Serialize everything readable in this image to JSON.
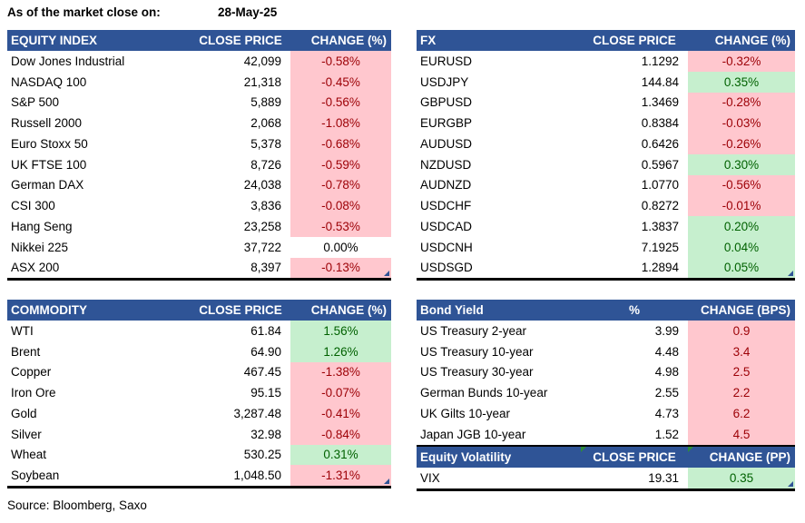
{
  "meta": {
    "as_of_label": "As of the market close on:",
    "date": "28-May-25",
    "source": "Source: Bloomberg, Saxo"
  },
  "colors": {
    "header_bg": "#2F5496",
    "header_text": "#FFFFFF",
    "negative_bg": "#FFC7CE",
    "negative_text": "#9C0006",
    "positive_bg": "#C6EFCE",
    "positive_text": "#006100",
    "flag_green": "#2E8B3A",
    "fill_handle_blue": "#2F5496"
  },
  "tables": {
    "equity": {
      "columns": [
        "EQUITY INDEX",
        "CLOSE PRICE",
        "CHANGE (%)"
      ],
      "rows": [
        {
          "name": "Dow Jones Industrial",
          "price": "42,099",
          "change": "-0.58%",
          "dir": "neg"
        },
        {
          "name": "NASDAQ 100",
          "price": "21,318",
          "change": "-0.45%",
          "dir": "neg"
        },
        {
          "name": "S&P 500",
          "price": "5,889",
          "change": "-0.56%",
          "dir": "neg"
        },
        {
          "name": "Russell 2000",
          "price": "2,068",
          "change": "-1.08%",
          "dir": "neg"
        },
        {
          "name": "Euro Stoxx 50",
          "price": "5,378",
          "change": "-0.68%",
          "dir": "neg"
        },
        {
          "name": "UK FTSE 100",
          "price": "8,726",
          "change": "-0.59%",
          "dir": "neg"
        },
        {
          "name": "German DAX",
          "price": "24,038",
          "change": "-0.78%",
          "dir": "neg"
        },
        {
          "name": "CSI 300",
          "price": "3,836",
          "change": "-0.08%",
          "dir": "neg"
        },
        {
          "name": "Hang Seng",
          "price": "23,258",
          "change": "-0.53%",
          "dir": "neg"
        },
        {
          "name": "Nikkei 225",
          "price": "37,722",
          "change": "0.00%",
          "dir": "flat"
        },
        {
          "name": "ASX 200",
          "price": "8,397",
          "change": "-0.13%",
          "dir": "neg"
        }
      ]
    },
    "fx": {
      "columns": [
        "FX",
        "CLOSE PRICE",
        "CHANGE (%)"
      ],
      "rows": [
        {
          "name": "EURUSD",
          "price": "1.1292",
          "change": "-0.32%",
          "dir": "neg"
        },
        {
          "name": "USDJPY",
          "price": "144.84",
          "change": "0.35%",
          "dir": "pos"
        },
        {
          "name": "GBPUSD",
          "price": "1.3469",
          "change": "-0.28%",
          "dir": "neg"
        },
        {
          "name": "EURGBP",
          "price": "0.8384",
          "change": "-0.03%",
          "dir": "neg"
        },
        {
          "name": "AUDUSD",
          "price": "0.6426",
          "change": "-0.26%",
          "dir": "neg"
        },
        {
          "name": "NZDUSD",
          "price": "0.5967",
          "change": "0.30%",
          "dir": "pos"
        },
        {
          "name": "AUDNZD",
          "price": "1.0770",
          "change": "-0.56%",
          "dir": "neg"
        },
        {
          "name": "USDCHF",
          "price": "0.8272",
          "change": "-0.01%",
          "dir": "neg"
        },
        {
          "name": "USDCAD",
          "price": "1.3837",
          "change": "0.20%",
          "dir": "pos"
        },
        {
          "name": "USDCNH",
          "price": "7.1925",
          "change": "0.04%",
          "dir": "pos"
        },
        {
          "name": "USDSGD",
          "price": "1.2894",
          "change": "0.05%",
          "dir": "pos"
        }
      ]
    },
    "commodity": {
      "columns": [
        "COMMODITY",
        "CLOSE PRICE",
        "CHANGE (%)"
      ],
      "rows": [
        {
          "name": "WTI",
          "price": "61.84",
          "change": "1.56%",
          "dir": "pos"
        },
        {
          "name": "Brent",
          "price": "64.90",
          "change": "1.26%",
          "dir": "pos"
        },
        {
          "name": "Copper",
          "price": "467.45",
          "change": "-1.38%",
          "dir": "neg"
        },
        {
          "name": "Iron Ore",
          "price": "95.15",
          "change": "-0.07%",
          "dir": "neg"
        },
        {
          "name": "Gold",
          "price": "3,287.48",
          "change": "-0.41%",
          "dir": "neg"
        },
        {
          "name": "Silver",
          "price": "32.98",
          "change": "-0.84%",
          "dir": "neg"
        },
        {
          "name": "Wheat",
          "price": "530.25",
          "change": "0.31%",
          "dir": "pos"
        },
        {
          "name": "Soybean",
          "price": "1,048.50",
          "change": "-1.31%",
          "dir": "neg"
        }
      ]
    },
    "bond": {
      "columns": [
        "Bond Yield",
        "%",
        "CHANGE (BPS)"
      ],
      "rows": [
        {
          "name": "US Treasury 2-year",
          "price": "3.99",
          "change": "0.9",
          "dir": "neg"
        },
        {
          "name": "US Treasury 10-year",
          "price": "4.48",
          "change": "3.4",
          "dir": "neg"
        },
        {
          "name": "US Treasury 30-year",
          "price": "4.98",
          "change": "2.5",
          "dir": "neg"
        },
        {
          "name": "German Bunds 10-year",
          "price": "2.55",
          "change": "2.2",
          "dir": "neg"
        },
        {
          "name": "UK Gilts 10-year",
          "price": "4.73",
          "change": "6.2",
          "dir": "neg"
        },
        {
          "name": "Japan JGB 10-year",
          "price": "1.52",
          "change": "4.5",
          "dir": "neg"
        }
      ]
    },
    "volatility": {
      "columns": [
        "Equity Volatility",
        "CLOSE PRICE",
        "CHANGE (PP)"
      ],
      "rows": [
        {
          "name": "VIX",
          "price": "19.31",
          "change": "0.35",
          "dir": "pos"
        }
      ]
    }
  }
}
